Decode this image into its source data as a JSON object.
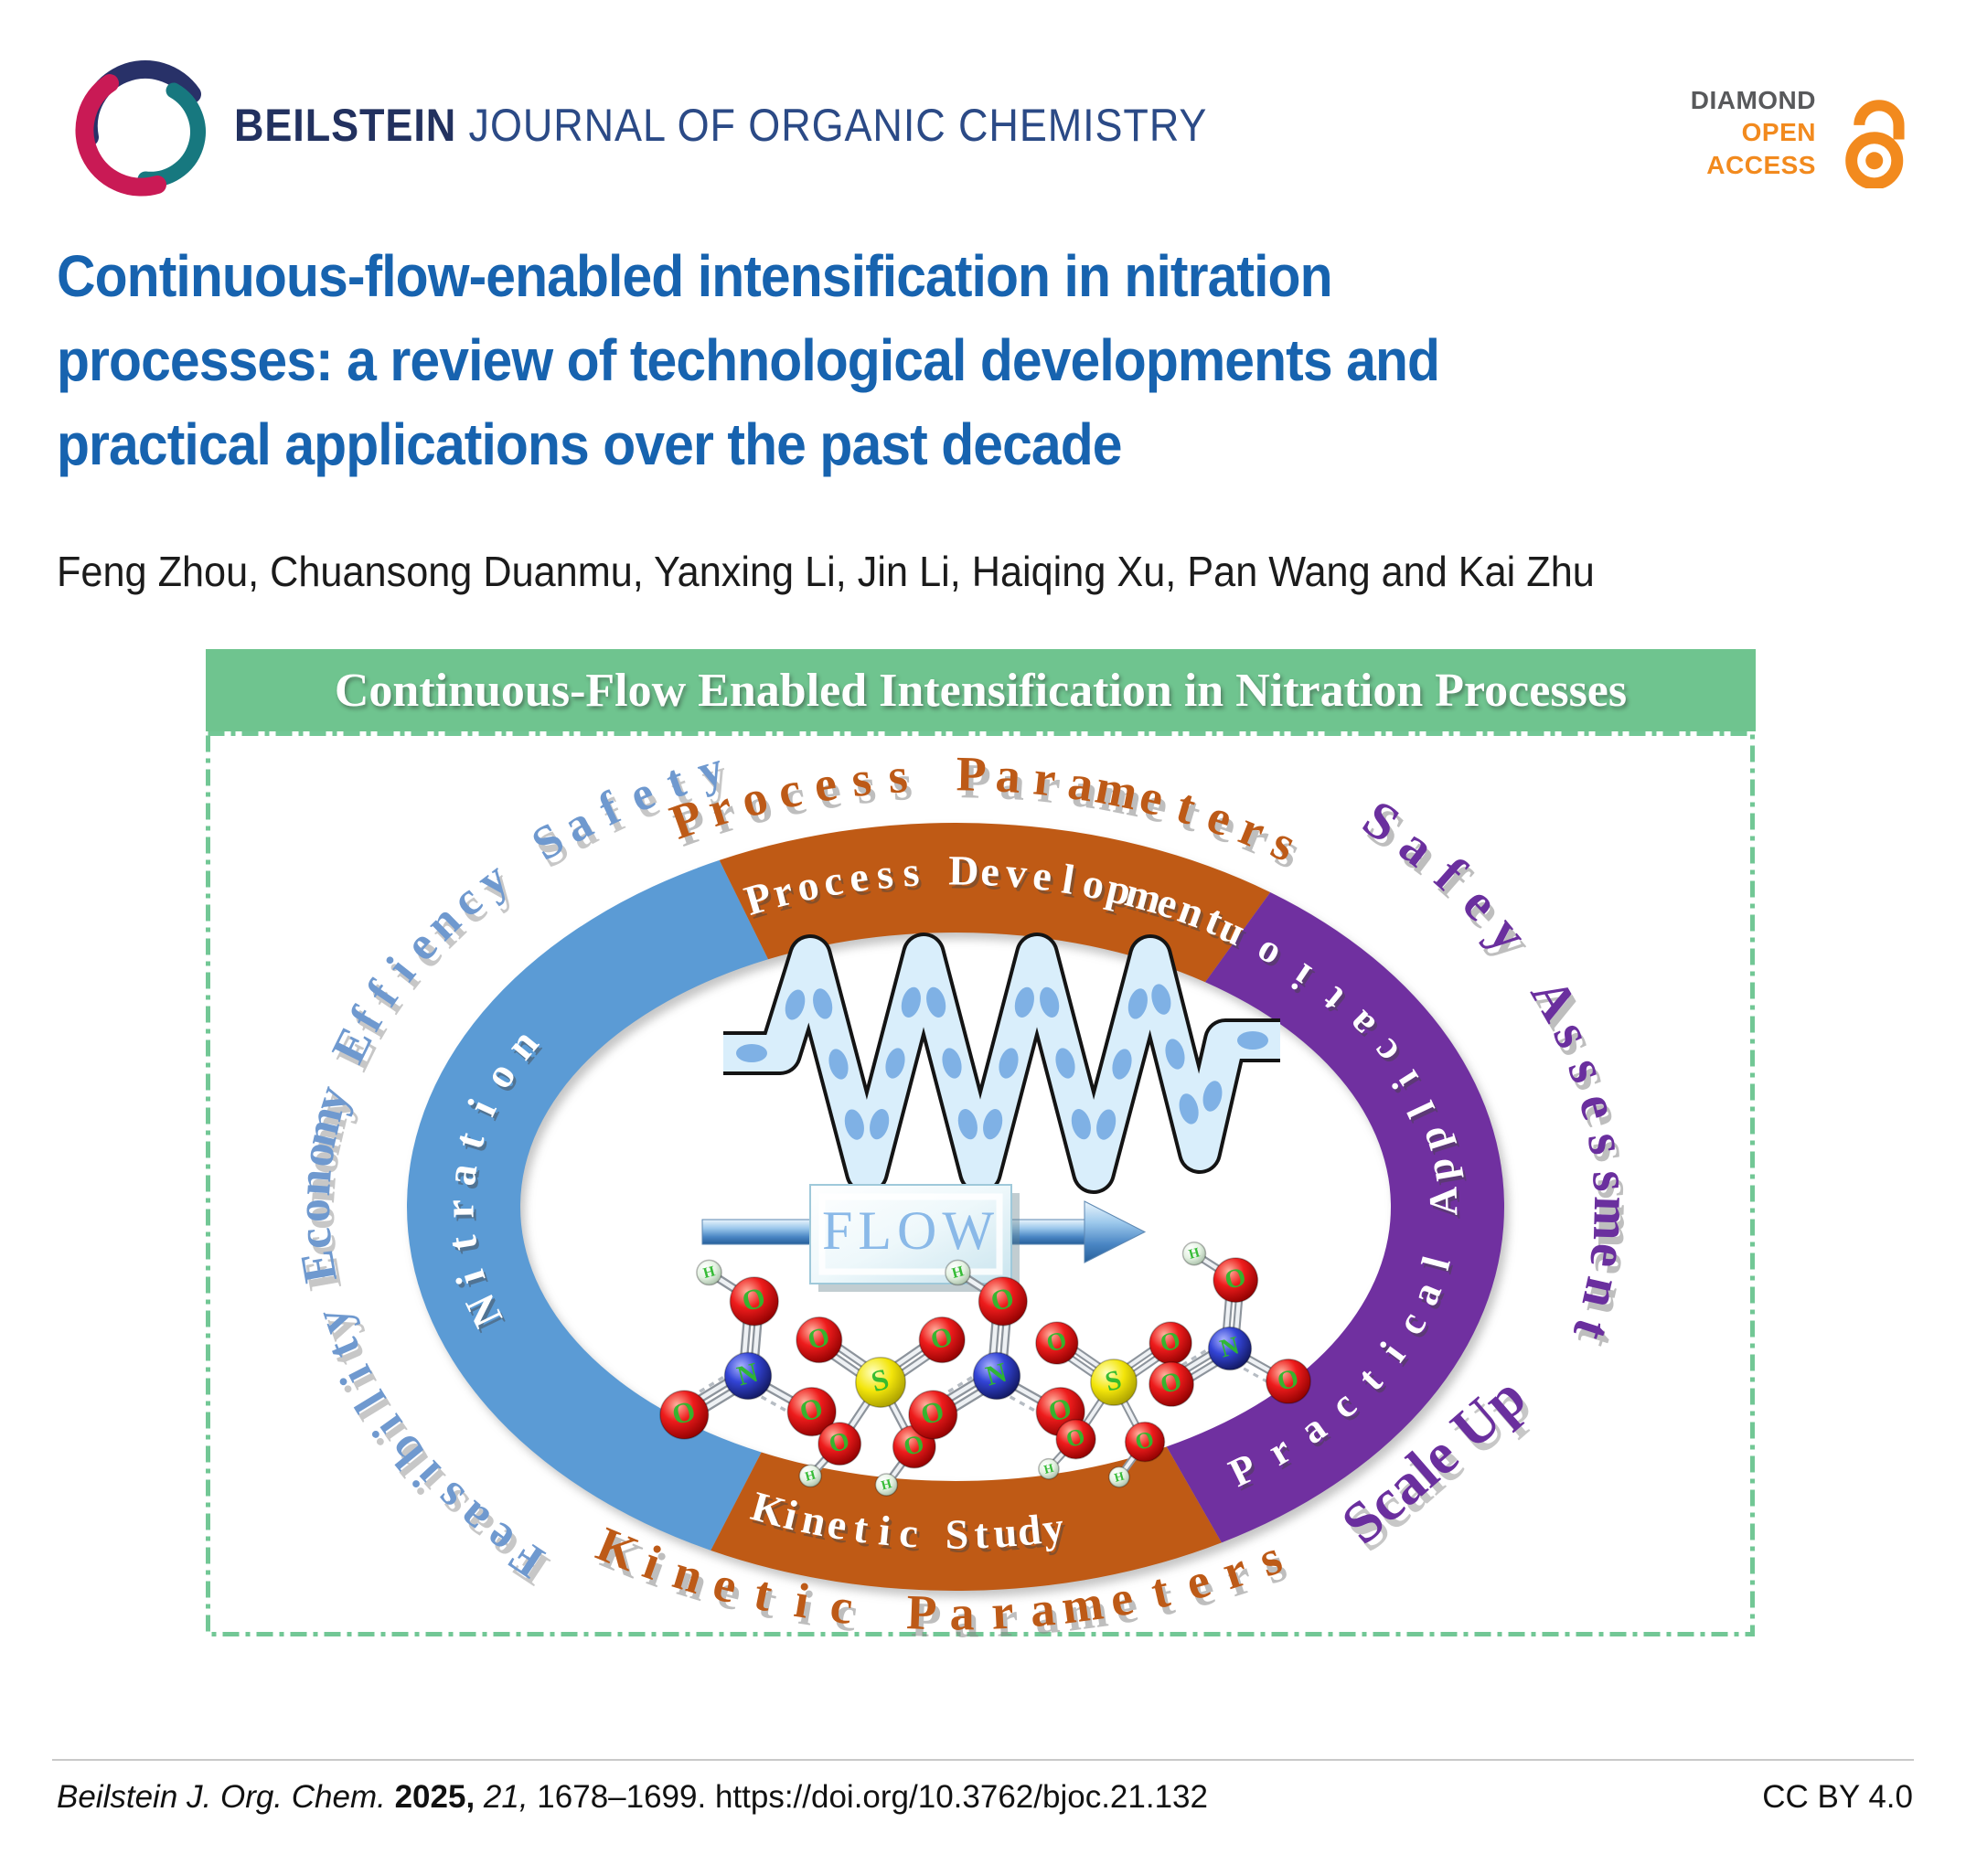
{
  "header": {
    "journal_bold": "BEILSTEIN",
    "journal_rest": "JOURNAL OF ORGANIC CHEMISTRY",
    "badge": {
      "diamond": "DIAMOND",
      "open": "OPEN",
      "access": "ACCESS"
    }
  },
  "article": {
    "title_lines": [
      "Continuous-flow-enabled intensification in nitration",
      "processes: a review of technological developments and",
      "practical applications over the past decade"
    ],
    "authors": "Feng Zhou, Chuansong Duanmu, Yanxing Li, Jin Li, Haiqing Xu, Pan Wang and Kai Zhu"
  },
  "graphic": {
    "banner": "Continuous-Flow Enabled Intensification in Nitration Processes",
    "ring": {
      "top": "Process Development",
      "left": "Nitration",
      "right": "Practical Application",
      "bottom": "Kinetic Study"
    },
    "outer": {
      "top": "Process Parameters",
      "right": "Safey Assessment",
      "left": "Feasibility Economy Effiency Safety",
      "bottom": "Kinetic Parameters",
      "corner": "Scale Up"
    },
    "flow_label": "FLOW",
    "molecules": [
      "HNO3",
      "H2SO4",
      "HNO3",
      "H2SO4",
      "HNO3"
    ]
  },
  "footer": {
    "journal_italic": "Beilstein J. Org. Chem.",
    "year_bold": "2025,",
    "volume_italic": "21,",
    "pages": "1678–1699.",
    "doi": "https://doi.org/10.3762/bjoc.21.132",
    "license": "CC BY 4.0"
  },
  "colors": {
    "banner_green": "#6fc48f",
    "border_green": "#72c795",
    "arc_blue": "#5b9bd5",
    "arc_orange": "#bf5a15",
    "arc_purple": "#7030a0",
    "outer_text_blue": "#6f99cf",
    "outer_text_orange": "#bd5a17",
    "outer_text_purple": "#6a2f9e",
    "title_blue": "#1763af",
    "access_orange": "#f28a1e",
    "diamond_gray": "#58595b"
  }
}
